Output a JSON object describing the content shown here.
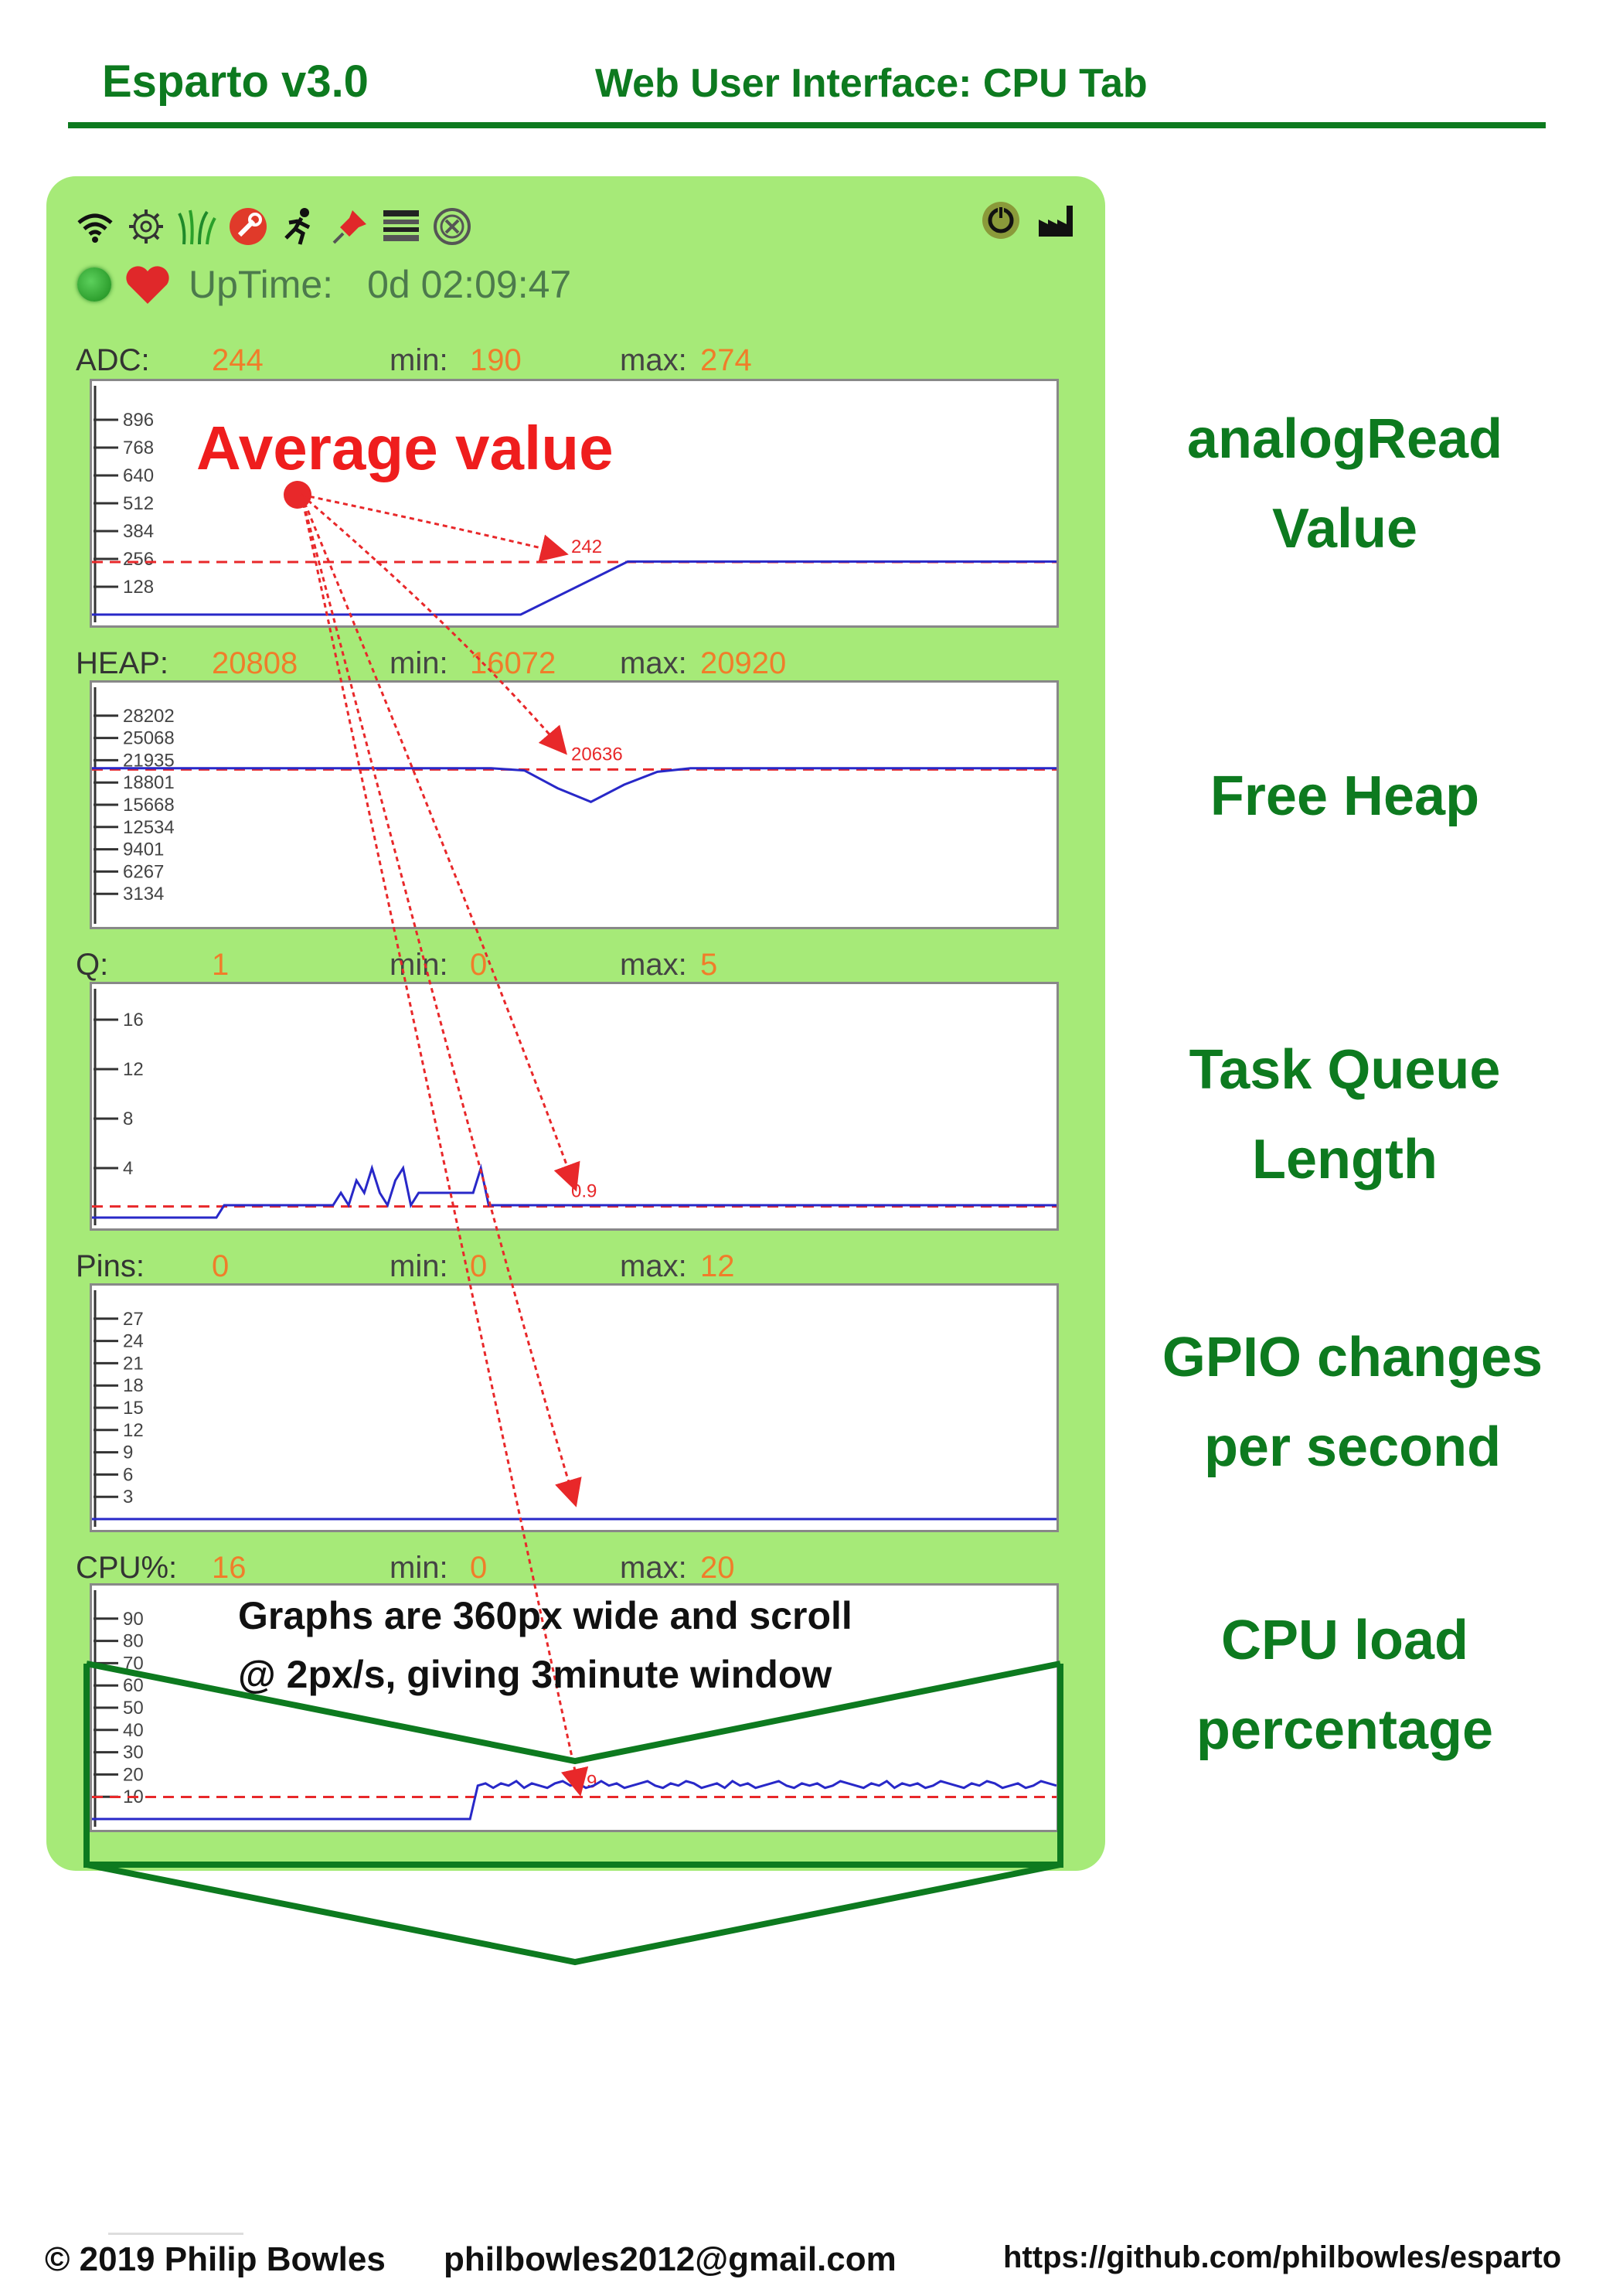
{
  "header": {
    "title": "Esparto v3.0",
    "subtitle": "Web User Interface:  CPU Tab"
  },
  "colors": {
    "brand_green": "#0d7a1f",
    "panel_green": "#a6ea78",
    "value_orange": "#f07d2a",
    "trace_blue": "#2828c8",
    "avg_red": "#e8282a"
  },
  "toolbar": {
    "icons": [
      "wifi-icon",
      "gear-icon",
      "grass-icon",
      "tools-icon",
      "runner-icon",
      "pin-icon",
      "list-icon",
      "close-circle-icon"
    ],
    "right_icons": [
      "reboot-icon",
      "factory-icon"
    ]
  },
  "status": {
    "uptime_label": "UpTime:",
    "uptime_value": "0d 02:09:47",
    "indicators": [
      "green-led",
      "heart-icon"
    ]
  },
  "stats": [
    {
      "label": "ADC:",
      "value": "244",
      "min_label": "min:",
      "min": "190",
      "max_label": "max:",
      "max": "274"
    },
    {
      "label": "HEAP:",
      "value": "20808",
      "min_label": "min:",
      "min": "16072",
      "max_label": "max:",
      "max": "20920"
    },
    {
      "label": "Q:",
      "value": "1",
      "min_label": "min:",
      "min": "0",
      "max_label": "max:",
      "max": "5"
    },
    {
      "label": "Pins:",
      "value": "0",
      "min_label": "min:",
      "min": "0",
      "max_label": "max:",
      "max": "12"
    },
    {
      "label": "CPU%:",
      "value": "16",
      "min_label": "min:",
      "min": "0",
      "max_label": "max:",
      "max": "20"
    }
  ],
  "chart_data": [
    {
      "type": "line",
      "y_ticks": [
        896,
        768,
        640,
        512,
        384,
        256,
        128
      ],
      "ylim": [
        0,
        1024
      ],
      "average_label": "242",
      "average": 242,
      "series": [
        {
          "x": [
            0,
            600,
            650,
            700,
            720,
            780,
            900,
            1000,
            1100,
            1248
          ],
          "values": [
            0,
            0,
            0,
            0,
            0,
            244,
            244,
            244,
            244,
            244
          ]
        }
      ]
    },
    {
      "type": "line",
      "y_ticks": [
        28202,
        25068,
        21935,
        18801,
        15668,
        12534,
        9401,
        6267,
        3134
      ],
      "ylim": [
        0,
        31336
      ],
      "average_label": "20636",
      "average": 20636,
      "series": [
        {
          "values": [
            20808,
            20808,
            20808,
            20808,
            20808,
            20808,
            20808,
            20808,
            20808,
            20808,
            20808,
            20808,
            20808,
            20500,
            18000,
            16072,
            18500,
            20300,
            20808,
            20808,
            20808,
            20808,
            20808,
            20808,
            20808,
            20808,
            20808,
            20808,
            20808,
            20808
          ]
        }
      ]
    },
    {
      "type": "line",
      "y_ticks": [
        16,
        12,
        8,
        4
      ],
      "ylim": [
        0,
        18
      ],
      "average_label": "0.9",
      "average": 0.9,
      "series": [
        {
          "values": [
            0,
            0,
            0,
            0,
            0,
            0,
            0,
            0,
            0,
            0,
            0,
            0,
            0,
            0,
            0,
            0,
            0,
            1,
            1,
            1,
            1,
            1,
            1,
            1,
            1,
            1,
            1,
            1,
            1,
            1,
            1,
            1,
            2,
            1,
            3,
            2,
            4,
            2,
            1,
            3,
            4,
            1,
            2,
            2,
            2,
            2,
            2,
            2,
            2,
            2,
            4,
            1,
            1,
            1,
            1,
            1,
            1,
            1,
            1,
            1,
            1,
            1,
            1,
            1,
            1,
            1,
            1,
            1,
            1,
            1,
            1,
            1,
            1,
            1,
            1,
            1,
            1,
            1,
            1,
            1,
            1,
            1,
            1,
            1,
            1,
            1,
            1,
            1,
            1,
            1,
            1,
            1,
            1,
            1,
            1,
            1,
            1,
            1,
            1,
            1,
            1,
            1,
            1,
            1,
            1,
            1,
            1,
            1,
            1,
            1,
            1,
            1,
            1,
            1,
            1,
            1,
            1,
            1,
            1,
            1,
            1,
            1,
            1,
            1,
            1
          ]
        }
      ]
    },
    {
      "type": "line",
      "y_ticks": [
        27,
        24,
        21,
        18,
        15,
        12,
        9,
        6,
        3
      ],
      "ylim": [
        0,
        30
      ],
      "average_label": "",
      "average": 0,
      "series": [
        {
          "values": [
            0,
            0,
            0,
            0,
            0,
            0,
            0,
            0,
            0,
            0,
            0,
            0,
            0,
            0,
            0,
            0,
            0,
            0,
            0,
            0,
            0,
            0,
            0,
            0,
            0,
            0,
            0,
            0,
            0,
            0,
            0,
            0,
            0,
            0,
            0,
            0,
            0,
            0,
            0,
            0,
            0,
            0,
            0,
            0,
            0,
            0,
            0,
            0,
            0,
            0,
            0,
            0,
            0,
            0,
            0,
            0,
            0,
            0,
            0,
            0,
            0,
            0,
            0,
            0,
            0,
            0,
            0,
            0,
            0,
            0,
            0,
            0,
            0,
            0,
            0,
            0,
            0,
            0,
            0,
            0,
            0,
            0,
            0,
            0,
            0,
            0,
            0,
            0,
            0,
            0,
            0,
            0,
            0,
            0,
            0,
            0,
            0,
            0,
            0,
            0,
            0,
            0,
            0,
            0,
            0,
            0,
            0,
            0,
            0,
            0,
            0,
            0,
            0,
            0,
            0,
            0,
            0,
            0,
            0,
            0,
            0,
            0,
            0,
            0,
            0
          ]
        }
      ]
    },
    {
      "type": "line",
      "y_ticks": [
        90,
        80,
        70,
        60,
        50,
        40,
        30,
        20,
        10
      ],
      "ylim": [
        0,
        100
      ],
      "average_label": "9.9",
      "average": 9.9,
      "series": [
        {
          "values": [
            0,
            0,
            0,
            0,
            0,
            0,
            0,
            0,
            0,
            0,
            0,
            0,
            0,
            0,
            0,
            0,
            0,
            0,
            0,
            0,
            0,
            0,
            0,
            0,
            0,
            0,
            0,
            0,
            0,
            0,
            0,
            0,
            0,
            0,
            0,
            0,
            0,
            0,
            0,
            0,
            0,
            0,
            0,
            0,
            0,
            0,
            0,
            0,
            0,
            0,
            15,
            16,
            14,
            16,
            15,
            17,
            14,
            16,
            15,
            14,
            16,
            17,
            15,
            16,
            14,
            15,
            17,
            15,
            16,
            14,
            15,
            16,
            17,
            15,
            14,
            16,
            15,
            17,
            16,
            14,
            15,
            16,
            14,
            17,
            15,
            16,
            14,
            15,
            16,
            17,
            15,
            14,
            16,
            15,
            16,
            14,
            15,
            17,
            16,
            15,
            14,
            16,
            15,
            17,
            14,
            16,
            15,
            16,
            14,
            15,
            17,
            16,
            15,
            14,
            16,
            15,
            17,
            16,
            14,
            15,
            16,
            14,
            15,
            17,
            16,
            15
          ]
        }
      ]
    }
  ],
  "callouts": {
    "adc": [
      "analogRead",
      "Value"
    ],
    "heap": [
      "Free Heap"
    ],
    "queue": [
      "Task Queue",
      "Length"
    ],
    "gpio": [
      "GPIO changes",
      "per second"
    ],
    "cpu": [
      "CPU load",
      "percentage"
    ]
  },
  "annotations": {
    "average_title": "Average value",
    "graphs_note_line1": "Graphs are 360px wide and scroll",
    "graphs_note_line2": "@ 2px/s, giving 3minute window"
  },
  "footer": {
    "copyright": "© 2019 Philip Bowles",
    "email": "philbowles2012@gmail.com",
    "url": "https://github.com/philbowles/esparto"
  }
}
